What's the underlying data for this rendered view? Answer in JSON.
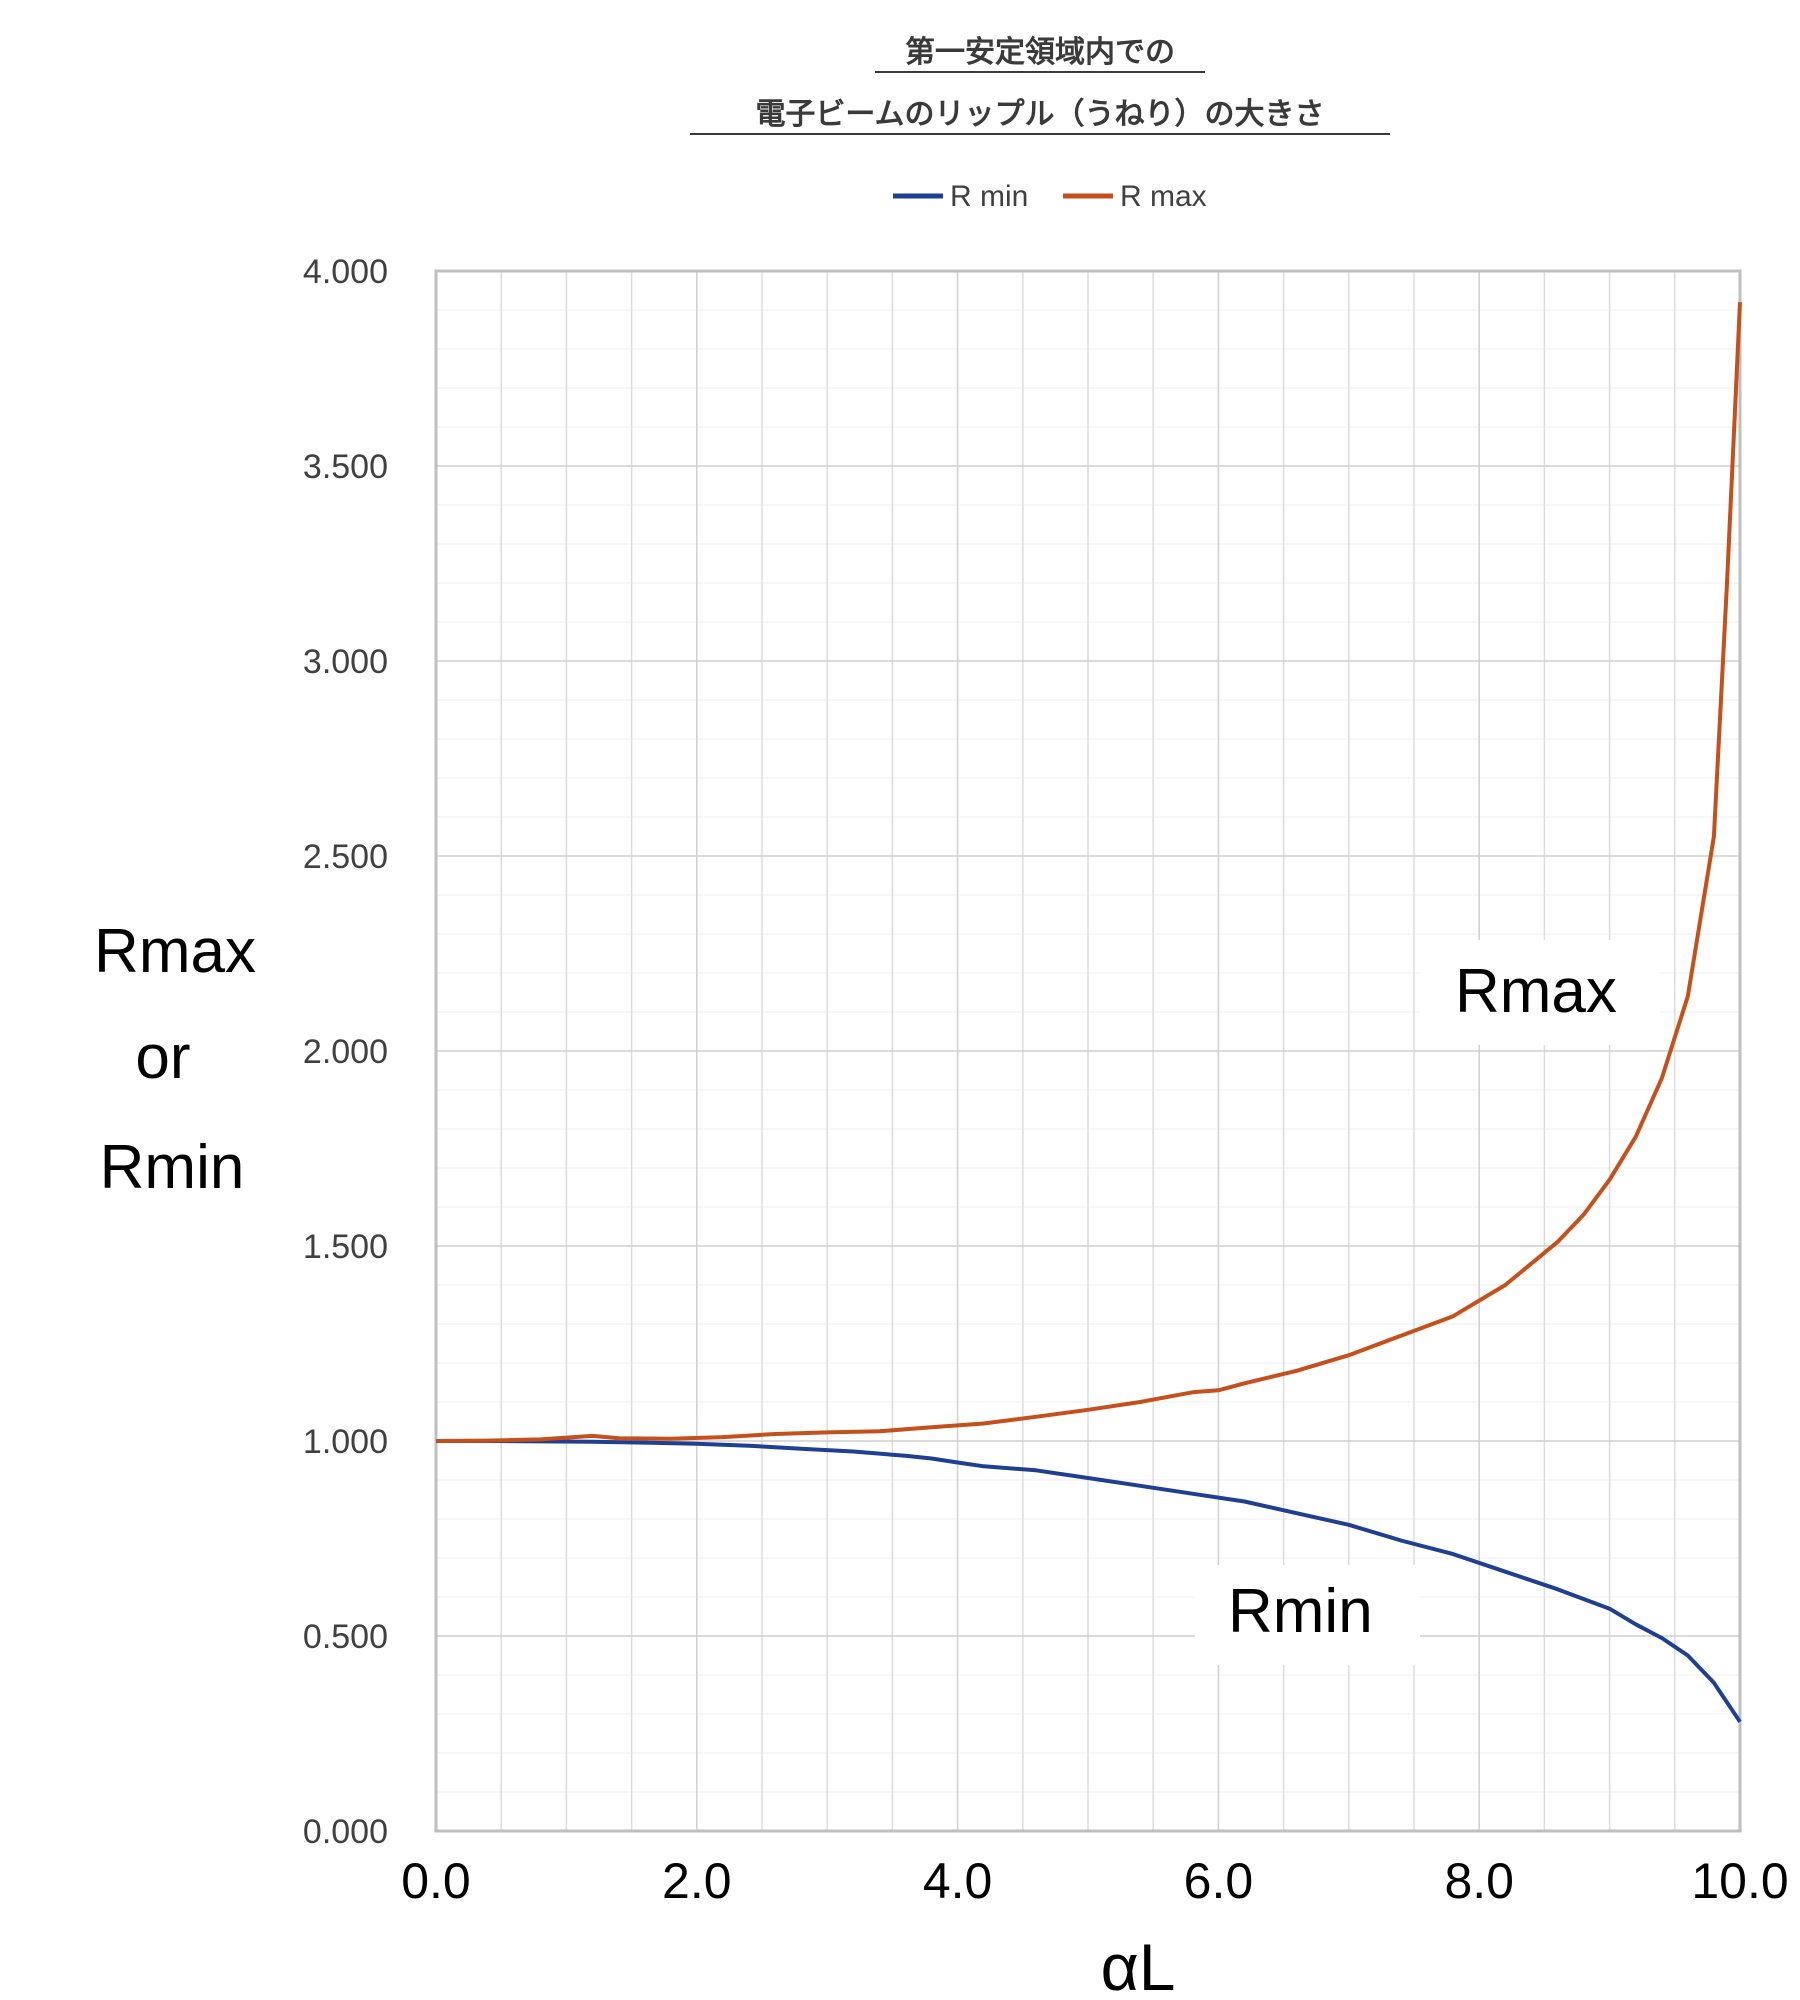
{
  "chart_data": {
    "type": "line",
    "title_lines": [
      "第一安定領域内での",
      "電子ビームのリップル（うねり）の大きさ"
    ],
    "xlabel": "αL",
    "ylabel_lines": [
      "Rmax",
      "or",
      "Rmin"
    ],
    "xlim": [
      0,
      10
    ],
    "ylim": [
      0,
      4
    ],
    "x_ticks": [
      "0.0",
      "2.0",
      "4.0",
      "6.0",
      "8.0",
      "10.0"
    ],
    "y_ticks": [
      "0.000",
      "0.500",
      "1.000",
      "1.500",
      "2.000",
      "2.500",
      "3.000",
      "3.500",
      "4.000"
    ],
    "grid": true,
    "legend_position": "top",
    "series": [
      {
        "name": "R min",
        "color": "#1f3f93",
        "points": [
          [
            0,
            1.0
          ],
          [
            0.4,
            1.0
          ],
          [
            0.8,
            0.999
          ],
          [
            1.2,
            0.998
          ],
          [
            1.6,
            0.996
          ],
          [
            2.0,
            0.993
          ],
          [
            2.4,
            0.988
          ],
          [
            2.8,
            0.98
          ],
          [
            3.2,
            0.973
          ],
          [
            3.6,
            0.962
          ],
          [
            3.8,
            0.955
          ],
          [
            4.0,
            0.945
          ],
          [
            4.2,
            0.935
          ],
          [
            4.6,
            0.925
          ],
          [
            5.0,
            0.905
          ],
          [
            5.4,
            0.885
          ],
          [
            5.8,
            0.865
          ],
          [
            6.2,
            0.845
          ],
          [
            6.6,
            0.815
          ],
          [
            7.0,
            0.785
          ],
          [
            7.4,
            0.745
          ],
          [
            7.8,
            0.71
          ],
          [
            8.2,
            0.665
          ],
          [
            8.6,
            0.62
          ],
          [
            9.0,
            0.57
          ],
          [
            9.2,
            0.53
          ],
          [
            9.4,
            0.495
          ],
          [
            9.6,
            0.45
          ],
          [
            9.8,
            0.38
          ],
          [
            10.0,
            0.28
          ]
        ]
      },
      {
        "name": "R max",
        "color": "#c5501b",
        "points": [
          [
            0,
            1.0
          ],
          [
            0.4,
            1.001
          ],
          [
            0.8,
            1.004
          ],
          [
            1.2,
            1.013
          ],
          [
            1.4,
            1.007
          ],
          [
            1.8,
            1.006
          ],
          [
            2.2,
            1.01
          ],
          [
            2.6,
            1.018
          ],
          [
            3.0,
            1.022
          ],
          [
            3.4,
            1.025
          ],
          [
            3.8,
            1.035
          ],
          [
            4.2,
            1.045
          ],
          [
            4.6,
            1.062
          ],
          [
            5.0,
            1.08
          ],
          [
            5.4,
            1.1
          ],
          [
            5.8,
            1.125
          ],
          [
            6.0,
            1.13
          ],
          [
            6.2,
            1.148
          ],
          [
            6.6,
            1.18
          ],
          [
            7.0,
            1.22
          ],
          [
            7.4,
            1.27
          ],
          [
            7.8,
            1.32
          ],
          [
            8.2,
            1.4
          ],
          [
            8.6,
            1.51
          ],
          [
            8.8,
            1.58
          ],
          [
            9.0,
            1.67
          ],
          [
            9.2,
            1.78
          ],
          [
            9.4,
            1.93
          ],
          [
            9.6,
            2.14
          ],
          [
            9.8,
            2.55
          ],
          [
            9.9,
            3.2
          ],
          [
            10.0,
            3.92
          ]
        ]
      }
    ],
    "annotations": [
      "Rmax",
      "Rmin"
    ]
  }
}
